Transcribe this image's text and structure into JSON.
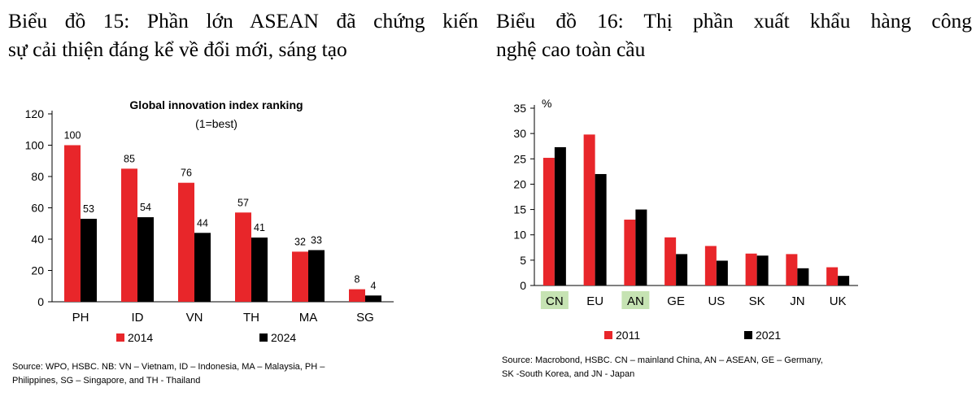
{
  "headings": {
    "left": {
      "line1": "Biểu đồ 15: Phần lớn ASEAN đã chứng kiến",
      "line2": "sự cải thiện đáng kể về đổi mới, sáng tạo"
    },
    "right": {
      "line1": "Biểu đồ 16: Thị phần xuất khẩu hàng công",
      "line2": "nghệ cao toàn cầu"
    }
  },
  "sources": {
    "left": {
      "line1": "Source: WPO, HSBC.  NB: VN – Vietnam, ID – Indonesia, MA – Malaysia, PH –",
      "line2": "Philippines, SG – Singapore, and TH - Thailand"
    },
    "right": {
      "line1": "Source: Macrobond, HSBC. CN – mainland China, AN – ASEAN, GE – Germany,",
      "line2": "SK -South Korea, and JN - Japan"
    }
  },
  "colors": {
    "series_a": "#e8262a",
    "series_b": "#000000",
    "highlight": "#c6e3b3"
  },
  "chart_data": [
    {
      "type": "bar",
      "title": "Global innovation index ranking",
      "subtitle": "(1=best)",
      "categories": [
        "PH",
        "ID",
        "VN",
        "TH",
        "MA",
        "SG"
      ],
      "series": [
        {
          "name": "2014",
          "values": [
            100,
            85,
            76,
            57,
            32,
            8
          ]
        },
        {
          "name": "2024",
          "values": [
            53,
            54,
            44,
            41,
            33,
            4
          ]
        }
      ],
      "ylim": [
        0,
        120
      ],
      "yticks": [
        0,
        20,
        40,
        60,
        80,
        100,
        120
      ],
      "data_labels": true,
      "legend": "bottom"
    },
    {
      "type": "bar",
      "ylabel": "%",
      "categories": [
        "CN",
        "EU",
        "AN",
        "GE",
        "US",
        "SK",
        "JN",
        "UK"
      ],
      "highlighted_categories": [
        "CN",
        "AN"
      ],
      "series": [
        {
          "name": "2011",
          "values": [
            25.2,
            29.8,
            13.0,
            9.5,
            7.8,
            6.3,
            6.2,
            3.6
          ]
        },
        {
          "name": "2021",
          "values": [
            27.3,
            22.0,
            15.0,
            6.2,
            4.9,
            5.9,
            3.4,
            1.9
          ]
        }
      ],
      "ylim": [
        0,
        35
      ],
      "yticks": [
        0,
        5,
        10,
        15,
        20,
        25,
        30,
        35
      ],
      "legend": "bottom"
    }
  ]
}
